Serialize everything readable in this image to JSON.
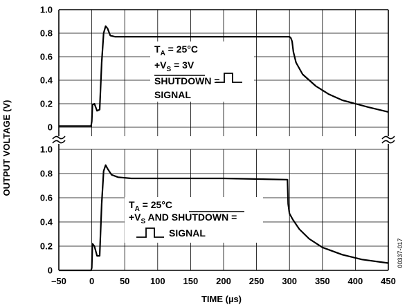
{
  "chart_data": {
    "type": "line",
    "xlabel": "TIME (µs)",
    "ylabel": "OUTPUT VOLTAGE (V)",
    "xlim": [
      -50,
      450
    ],
    "x_ticks": [
      "–50",
      "0",
      "50",
      "100",
      "150",
      "200",
      "250",
      "300",
      "350",
      "400",
      "450"
    ],
    "grid": true,
    "figure_id": "00337-017",
    "panels": [
      {
        "ylim": [
          0,
          1.0
        ],
        "y_ticks": [
          "1.0",
          "0.8",
          "0.6",
          "0.4",
          "0.2",
          "0"
        ],
        "annotation": {
          "line1_main": "T",
          "line1_sub": "A",
          "line1_rest": " = 25°C",
          "line2_main": "+V",
          "line2_sub": "S",
          "line2_rest": " = 3V",
          "line3_over": "SHUTDOWN",
          "line3_rest": " =",
          "line4": "SIGNAL"
        },
        "series": [
          {
            "x": [
              -50,
              -1,
              0,
              1,
              4,
              8,
              12,
              15,
              18,
              21,
              24,
              28,
              35,
              60,
              100,
              200,
              300,
              302,
              304,
              306,
              310,
              320,
              340,
              360,
              380,
              400,
              420,
              450
            ],
            "y": [
              0.01,
              0.01,
              0.05,
              0.19,
              0.2,
              0.14,
              0.15,
              0.55,
              0.8,
              0.86,
              0.84,
              0.78,
              0.77,
              0.77,
              0.77,
              0.77,
              0.77,
              0.76,
              0.73,
              0.64,
              0.55,
              0.45,
              0.35,
              0.28,
              0.23,
              0.2,
              0.17,
              0.13
            ]
          }
        ]
      },
      {
        "ylim": [
          0,
          1.0
        ],
        "y_ticks": [
          "1.0",
          "0.8",
          "0.6",
          "0.4",
          "0.2",
          "0"
        ],
        "annotation": {
          "line1_main": "T",
          "line1_sub": "A",
          "line1_rest": " = 25°C",
          "line2_main": "+V",
          "line2_sub": "S",
          "line2_rest": " AND ",
          "line2_over": "SHUTDOWN",
          "line2_end": " =",
          "line3": "SIGNAL"
        },
        "series": [
          {
            "x": [
              -50,
              -1,
              0,
              1,
              4,
              8,
              12,
              15,
              18,
              21,
              24,
              30,
              40,
              60,
              100,
              200,
              297,
              298,
              300,
              305,
              315,
              330,
              350,
              380,
              410,
              450
            ],
            "y": [
              0.0,
              0.0,
              0.02,
              0.22,
              0.2,
              0.12,
              0.12,
              0.55,
              0.82,
              0.87,
              0.84,
              0.79,
              0.77,
              0.76,
              0.76,
              0.76,
              0.75,
              0.55,
              0.47,
              0.42,
              0.34,
              0.26,
              0.19,
              0.13,
              0.09,
              0.06
            ]
          }
        ]
      }
    ]
  }
}
